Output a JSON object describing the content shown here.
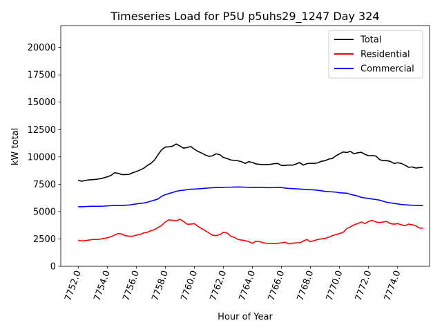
{
  "chart_data": {
    "type": "line",
    "title": "Timeseries Load for P5U p5uhs29_1247  Day 324",
    "xlabel": "Hour of Year",
    "ylabel": "kW total",
    "xlim": [
      7750.8,
      7776.2
    ],
    "ylim": [
      0,
      22000
    ],
    "xticks": [
      7752,
      7754,
      7756,
      7758,
      7760,
      7762,
      7764,
      7766,
      7768,
      7770,
      7772,
      7774
    ],
    "xtick_labels": [
      "7752.0",
      "7754.0",
      "7756.0",
      "7758.0",
      "7760.0",
      "7762.0",
      "7764.0",
      "7766.0",
      "7768.0",
      "7770.0",
      "7772.0",
      "7774.0"
    ],
    "yticks": [
      0,
      2500,
      5000,
      7500,
      10000,
      12500,
      15000,
      17500,
      20000
    ],
    "ytick_labels": [
      "0",
      "2500",
      "5000",
      "7500",
      "10000",
      "12500",
      "15000",
      "17500",
      "20000"
    ],
    "legend_position": "top-right",
    "x": [
      7752.0,
      7752.25,
      7752.5,
      7752.75,
      7753.0,
      7753.25,
      7753.5,
      7753.75,
      7754.0,
      7754.25,
      7754.5,
      7754.75,
      7755.0,
      7755.25,
      7755.5,
      7755.75,
      7756.0,
      7756.25,
      7756.5,
      7756.75,
      7757.0,
      7757.25,
      7757.5,
      7757.75,
      7758.0,
      7758.25,
      7758.5,
      7758.75,
      7759.0,
      7759.25,
      7759.5,
      7759.75,
      7760.0,
      7760.25,
      7760.5,
      7760.75,
      7761.0,
      7761.25,
      7761.5,
      7761.75,
      7762.0,
      7762.25,
      7762.5,
      7762.75,
      7763.0,
      7763.25,
      7763.5,
      7763.75,
      7764.0,
      7764.25,
      7764.5,
      7764.75,
      7765.0,
      7765.25,
      7765.5,
      7765.75,
      7766.0,
      7766.25,
      7766.5,
      7766.75,
      7767.0,
      7767.25,
      7767.5,
      7767.75,
      7768.0,
      7768.25,
      7768.5,
      7768.75,
      7769.0,
      7769.25,
      7769.5,
      7769.75,
      7770.0,
      7770.25,
      7770.5,
      7770.75,
      7771.0,
      7771.25,
      7771.5,
      7771.75,
      7772.0,
      7772.25,
      7772.5,
      7772.75,
      7773.0,
      7773.25,
      7773.5,
      7773.75,
      7774.0,
      7774.25,
      7774.5,
      7774.75,
      7775.0,
      7775.25,
      7775.5,
      7775.75
    ],
    "series": [
      {
        "name": "Total",
        "color": "#000000",
        "values": [
          7850,
          7780,
          7850,
          7900,
          7920,
          7950,
          8000,
          8080,
          8180,
          8300,
          8550,
          8500,
          8380,
          8380,
          8400,
          8550,
          8650,
          8800,
          8950,
          9200,
          9400,
          9700,
          10200,
          10650,
          10900,
          10920,
          10980,
          11180,
          11000,
          10800,
          10850,
          10950,
          10700,
          10500,
          10350,
          10180,
          10050,
          10100,
          10280,
          10200,
          9950,
          9850,
          9720,
          9680,
          9640,
          9560,
          9400,
          9560,
          9500,
          9350,
          9320,
          9300,
          9300,
          9320,
          9380,
          9400,
          9220,
          9220,
          9260,
          9240,
          9350,
          9480,
          9250,
          9380,
          9420,
          9400,
          9450,
          9600,
          9650,
          9800,
          9850,
          10100,
          10280,
          10450,
          10400,
          10500,
          10280,
          10380,
          10420,
          10230,
          10100,
          10120,
          10080,
          9760,
          9650,
          9660,
          9580,
          9400,
          9460,
          9400,
          9250,
          9050,
          9080,
          8980,
          9020,
          9050
        ]
      },
      {
        "name": "Residential",
        "color": "#ff0000",
        "values": [
          2380,
          2320,
          2350,
          2400,
          2450,
          2450,
          2480,
          2550,
          2600,
          2700,
          2850,
          3000,
          2950,
          2800,
          2750,
          2750,
          2850,
          2900,
          3050,
          3100,
          3250,
          3350,
          3550,
          3750,
          4050,
          4250,
          4200,
          4150,
          4300,
          4100,
          3850,
          3850,
          3900,
          3650,
          3450,
          3250,
          3050,
          2850,
          2800,
          2900,
          3100,
          3050,
          2750,
          2650,
          2450,
          2400,
          2350,
          2250,
          2100,
          2300,
          2250,
          2150,
          2100,
          2100,
          2080,
          2100,
          2150,
          2200,
          2050,
          2100,
          2150,
          2150,
          2300,
          2450,
          2250,
          2350,
          2450,
          2500,
          2550,
          2650,
          2800,
          2900,
          3000,
          3100,
          3450,
          3600,
          3800,
          3900,
          4050,
          3900,
          4100,
          4200,
          4050,
          4000,
          4050,
          4100,
          3900,
          3850,
          3900,
          3800,
          3700,
          3850,
          3800,
          3700,
          3500,
          3480
        ]
      },
      {
        "name": "Commercial",
        "color": "#0000ff",
        "values": [
          5450,
          5440,
          5460,
          5480,
          5490,
          5480,
          5490,
          5500,
          5520,
          5540,
          5550,
          5560,
          5560,
          5580,
          5600,
          5650,
          5700,
          5750,
          5780,
          5850,
          5950,
          6050,
          6150,
          6400,
          6550,
          6650,
          6750,
          6850,
          6920,
          6950,
          7000,
          7050,
          7050,
          7080,
          7100,
          7130,
          7160,
          7180,
          7200,
          7200,
          7220,
          7230,
          7230,
          7240,
          7250,
          7240,
          7230,
          7220,
          7210,
          7210,
          7200,
          7200,
          7190,
          7190,
          7200,
          7220,
          7200,
          7150,
          7120,
          7100,
          7080,
          7060,
          7040,
          7020,
          7000,
          6980,
          6950,
          6900,
          6850,
          6820,
          6800,
          6780,
          6720,
          6700,
          6680,
          6580,
          6500,
          6420,
          6300,
          6250,
          6200,
          6150,
          6100,
          6050,
          5950,
          5850,
          5800,
          5750,
          5700,
          5650,
          5620,
          5600,
          5580,
          5570,
          5560,
          5550
        ]
      }
    ]
  }
}
